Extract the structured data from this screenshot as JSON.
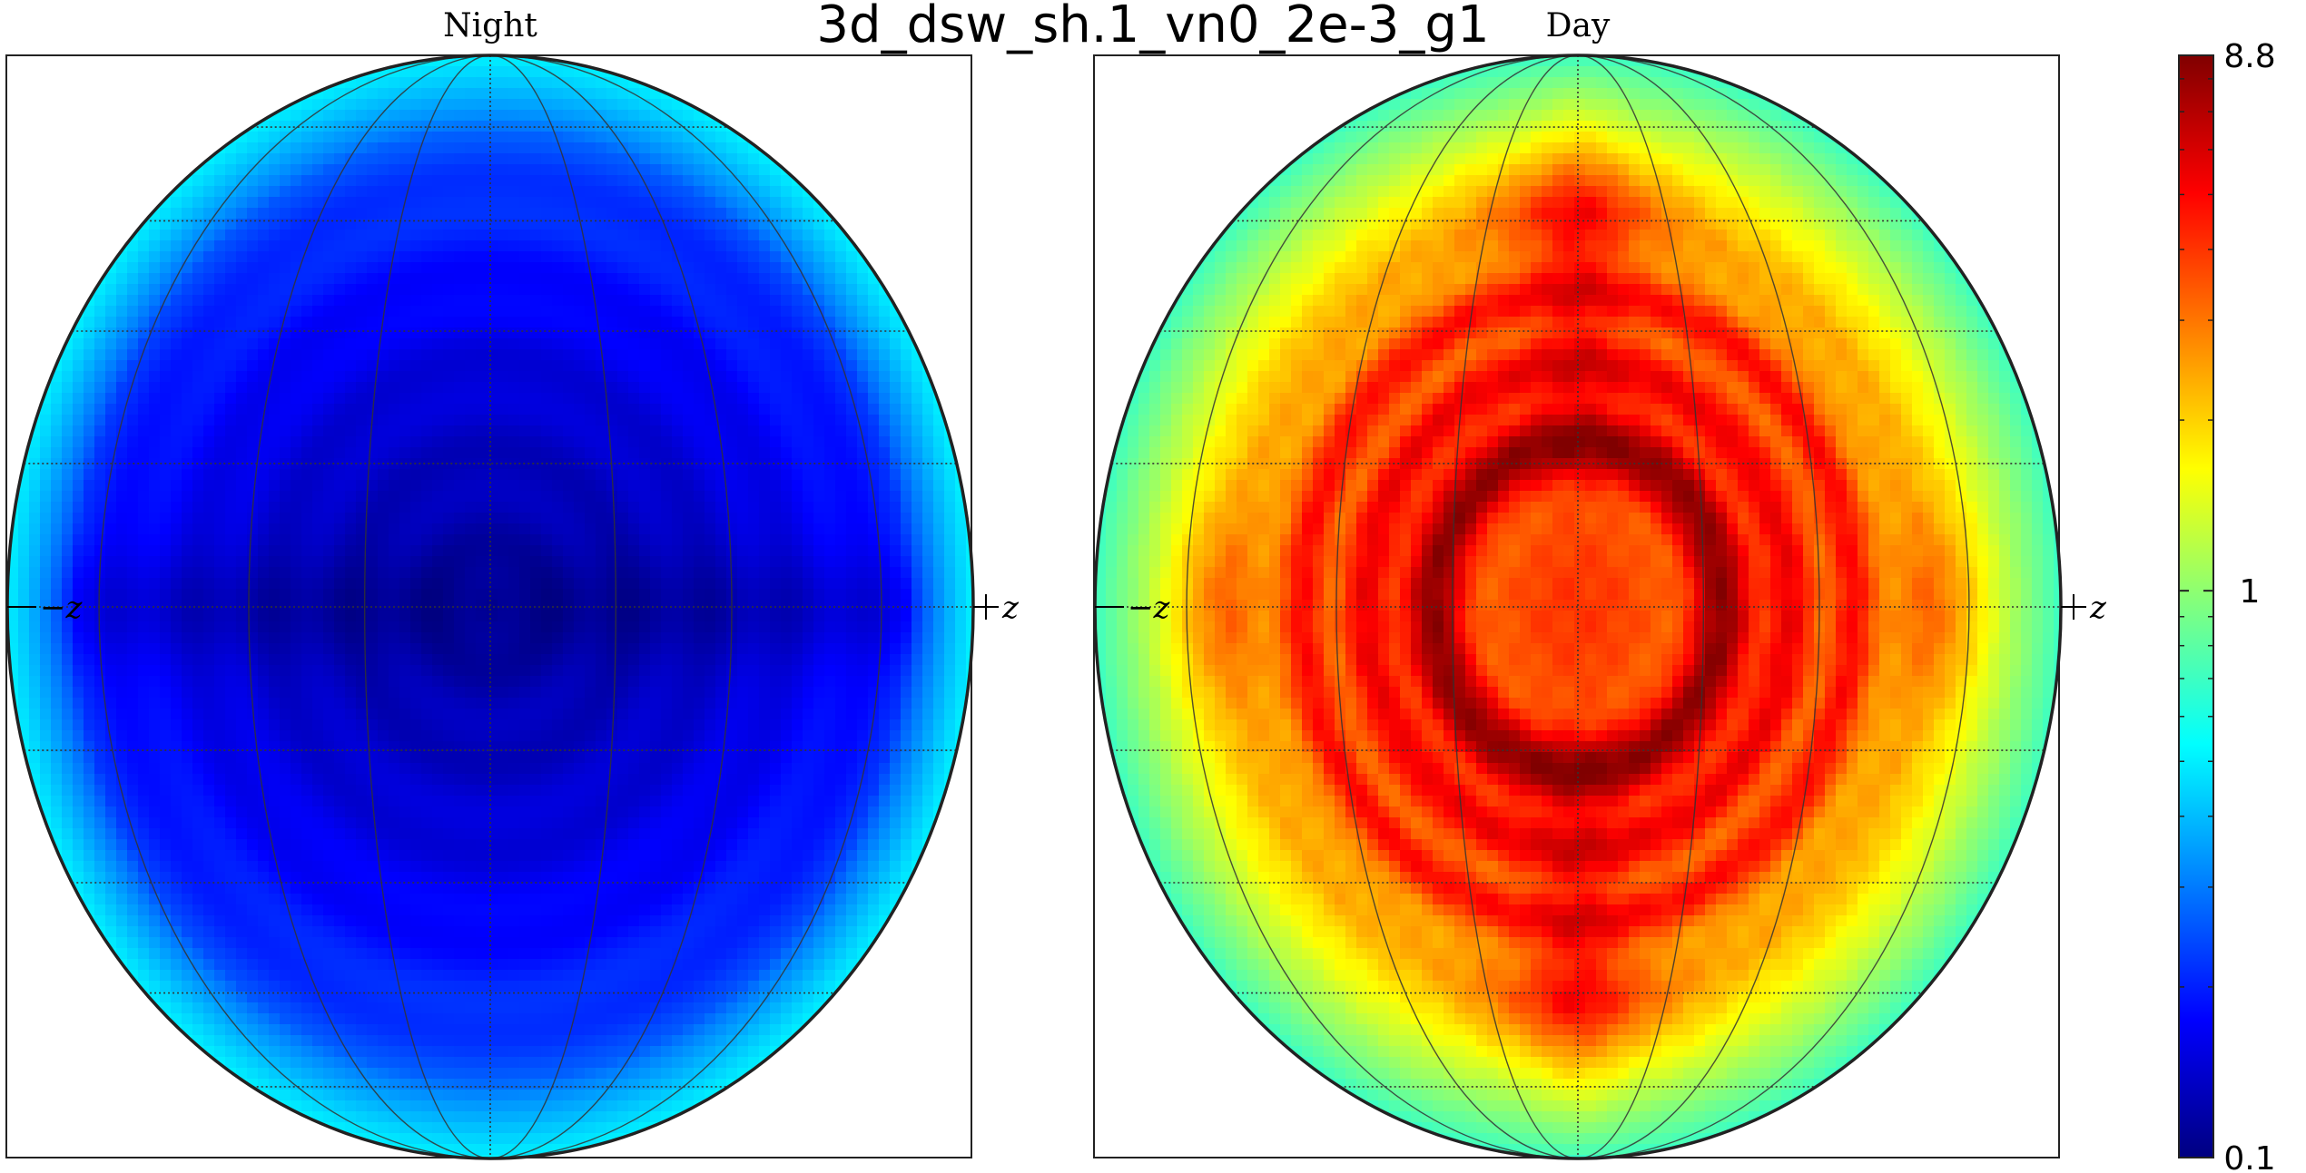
{
  "chart_data": {
    "type": "heatmap",
    "title": "3d_dsw_sh.1_vn0_2e-3_g1",
    "projection": "orthographic",
    "grid": true,
    "panels": [
      {
        "name": "Night",
        "left_marker": "−z",
        "right_marker": "+z",
        "description": "nearly uniform dark blue disk, darkest at centre and on the horizontal midline, rising to cyan at the limb",
        "center_value": 0.12,
        "limb_value": 0.5
      },
      {
        "name": "Day",
        "left_marker": "−z",
        "right_marker": "+z",
        "description": "orange/red disk with a dark-red ring around an orange centre, orange lobes at top, bottom, left and right, yellow-green near the limb",
        "center_value": 4.0,
        "ring_value": 8.0,
        "limb_value": 0.7
      }
    ],
    "colorbar": {
      "colormap": "jet",
      "scale": "log",
      "min": 0.1,
      "max": 8.8,
      "ticks": [
        {
          "value": 8.8,
          "label": "8.8"
        },
        {
          "value": 1,
          "label": "1"
        },
        {
          "value": 0.1,
          "label": "0.1"
        }
      ],
      "minor_ticks": [
        0.2,
        0.3,
        0.4,
        0.5,
        0.6,
        0.7,
        0.8,
        0.9,
        2,
        3,
        4,
        5,
        6,
        7,
        8
      ]
    },
    "colors": {
      "frame": "#222222",
      "grid": "#333333",
      "background": "#ffffff"
    }
  }
}
